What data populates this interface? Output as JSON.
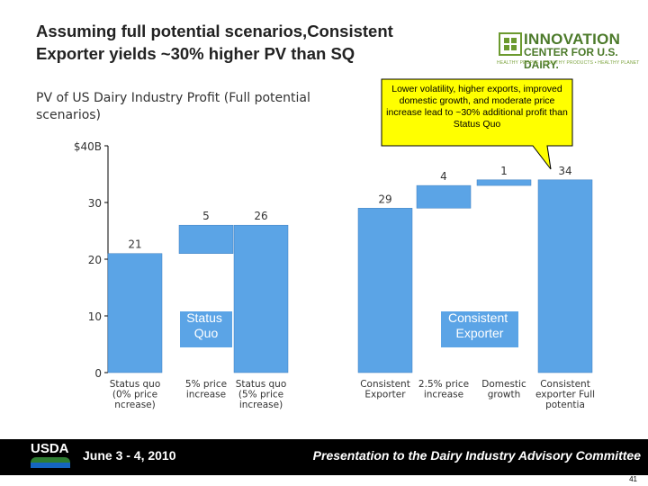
{
  "slide": {
    "title_line1": "Assuming full potential scenarios,Consistent",
    "title_line2": "Exporter yields ~30% higher PV than SQ",
    "subtitle": "PV of US Dairy Industry Profit (Full potential scenarios)",
    "callout": "Lower volatility, higher exports, improved domestic growth, and moderate price increase lead to ~30% additional profit than Status Quo",
    "group_label_left": "Status Quo",
    "group_label_right": "Consistent Exporter",
    "page_number": "41"
  },
  "logo": {
    "line1": "INNOVATION",
    "line2": "CENTER FOR U.S. DAIRY.",
    "tagline": "HEALTHY PEOPLE • HEALTHY PRODUCTS • HEALTHY PLANET"
  },
  "footer": {
    "agency": "USDA",
    "date": "June 3 - 4, 2010",
    "presentation": "Presentation to the Dairy Industry Advisory Committee"
  },
  "colors": {
    "bar": "#5ba4e6",
    "bar_edge": "#3f7fbf",
    "footer_bg": "#000000",
    "callout_bg": "#ffff00",
    "logo_green": "#4c7a2a"
  },
  "chart_data": {
    "type": "bar",
    "subtype": "waterfall",
    "y_ticks": [
      "$40B",
      "30",
      "20",
      "10",
      "0"
    ],
    "ylim": [
      0,
      40
    ],
    "bars": [
      {
        "label": "Status quo (0% price ncrease)",
        "value": 21,
        "base": 0,
        "value_label": "21"
      },
      {
        "label": "5% price increase",
        "value": 5,
        "base": 21,
        "value_label": "5"
      },
      {
        "label": "Status quo (5% price increase)",
        "value": 26,
        "base": 0,
        "value_label": "26"
      },
      {
        "label": "Consistent Exporter",
        "value": 29,
        "base": 0,
        "value_label": "29"
      },
      {
        "label": "2.5% price increase",
        "value": 4,
        "base": 29,
        "value_label": "4"
      },
      {
        "label": "Domestic growth",
        "value": 1,
        "base": 33,
        "value_label": "1"
      },
      {
        "label": "Consistent exporter Full potentia",
        "value": 34,
        "base": 0,
        "value_label": "34"
      }
    ]
  }
}
